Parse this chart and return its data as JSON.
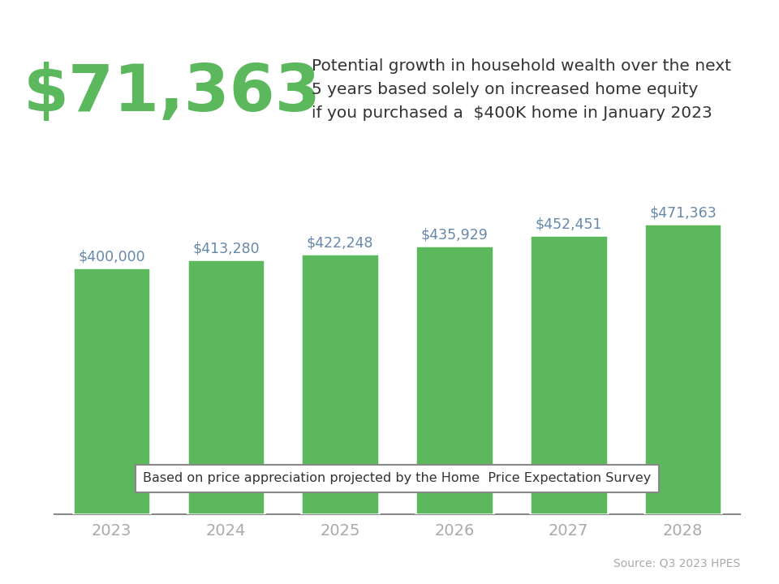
{
  "years": [
    "2023",
    "2024",
    "2025",
    "2026",
    "2027",
    "2028"
  ],
  "values": [
    400000,
    413280,
    422248,
    435929,
    452451,
    471363
  ],
  "labels": [
    "$400,000",
    "$413,280",
    "$422,248",
    "$435,929",
    "$452,451",
    "$471,363"
  ],
  "bar_color": "#5cb85c",
  "bg_color": "#ffffff",
  "header_bar_color": "#29abe2",
  "big_number": "$71,363",
  "big_number_color": "#5cb85c",
  "big_number_fontsize": 58,
  "subtitle_text": "Potential growth in household wealth over the next\n5 years based solely on increased home equity\nif you purchased a  $400K home in January 2023",
  "subtitle_color": "#333333",
  "subtitle_fontsize": 14.5,
  "annotation_text": "Based on price appreciation projected by the Home  Price Expectation Survey",
  "source_text": "Source: Q3 2023 HPES",
  "source_color": "#aaaaaa",
  "tick_color": "#aaaaaa",
  "label_color": "#6688aa",
  "ylim_min": 0,
  "ylim_max": 560000,
  "label_fontsize": 12.5,
  "tick_fontsize": 14,
  "bar_width": 0.68
}
